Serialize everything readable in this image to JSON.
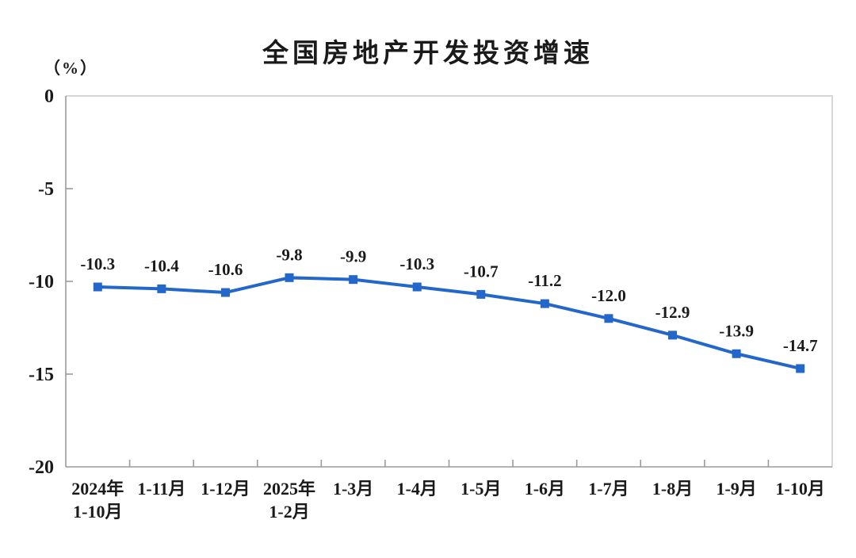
{
  "chart_data": {
    "type": "line",
    "title": "全国房地产开发投资增速",
    "unit_label": "（%）",
    "categories": [
      [
        "2024年",
        "1-10月"
      ],
      [
        "1-11月"
      ],
      [
        "1-12月"
      ],
      [
        "2025年",
        "1-2月"
      ],
      [
        "1-3月"
      ],
      [
        "1-4月"
      ],
      [
        "1-5月"
      ],
      [
        "1-6月"
      ],
      [
        "1-7月"
      ],
      [
        "1-8月"
      ],
      [
        "1-9月"
      ],
      [
        "1-10月"
      ]
    ],
    "values": [
      -10.3,
      -10.4,
      -10.6,
      -9.8,
      -9.9,
      -10.3,
      -10.7,
      -11.2,
      -12.0,
      -12.9,
      -13.9,
      -14.7
    ],
    "data_labels": [
      "-10.3",
      "-10.4",
      "-10.6",
      "-9.8",
      "-9.9",
      "-10.3",
      "-10.7",
      "-11.2",
      "-12.0",
      "-12.9",
      "-13.9",
      "-14.7"
    ],
    "xlabel": "",
    "ylabel": "",
    "ylim": [
      -20,
      0
    ],
    "yticks": [
      0,
      -5,
      -10,
      -15,
      -20
    ],
    "grid": false,
    "legend": "none",
    "marker": "square",
    "line_color": "#2267c9",
    "axis_color": "#9b9b9b",
    "border_color": "#d7d7d7",
    "text_color": "#1a1a1a"
  }
}
